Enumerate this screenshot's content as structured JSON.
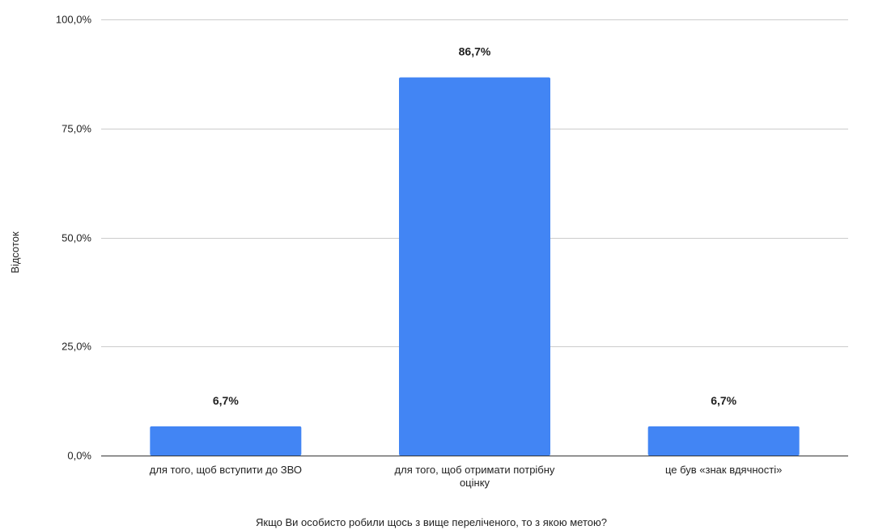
{
  "chart_data": {
    "type": "bar",
    "categories": [
      [
        "для того, щоб вступити до ЗВО"
      ],
      [
        "для того, щоб отримати потрібну",
        "оцінку"
      ],
      [
        "це був «знак вдячності»"
      ]
    ],
    "values": [
      6.7,
      86.7,
      6.7
    ],
    "data_labels": [
      "6,7%",
      "86,7%",
      "6,7%"
    ],
    "y_ticks": [
      0,
      25,
      50,
      75,
      100
    ],
    "y_tick_labels": [
      "0,0%",
      "25,0%",
      "50,0%",
      "75,0%",
      "100,0%"
    ],
    "ylim": [
      0,
      100
    ],
    "xlabel": "Якщо Ви особисто робили щось з вище переліченого, то з якою метою?",
    "ylabel": "Відсоток",
    "grid": true,
    "legend": "none",
    "colors": {
      "bar": "#4285f4",
      "grid": "#cccccc",
      "baseline": "#333333",
      "text": "#222222"
    }
  }
}
